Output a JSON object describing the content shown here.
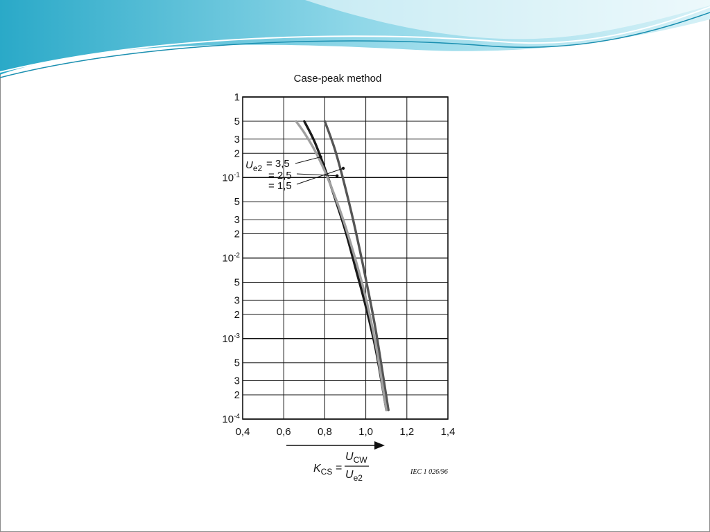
{
  "slide": {
    "colors": {
      "banner_dark": "#1fa3c4",
      "banner_light": "#bfe8f2",
      "frame": "#8a8a8a"
    }
  },
  "chart_data": {
    "type": "line",
    "title": "Case-peak method",
    "x_ticks": [
      "0,4",
      "0,6",
      "0,8",
      "1,0",
      "1,2",
      "1,4"
    ],
    "xlim": [
      0.4,
      1.4
    ],
    "y_scale": "log",
    "ylim": [
      0.0001,
      1
    ],
    "y_decade_labels": [
      {
        "base": "1",
        "exp": ""
      },
      {
        "base": "10",
        "exp": "-1"
      },
      {
        "base": "10",
        "exp": "-2"
      },
      {
        "base": "10",
        "exp": "-3"
      },
      {
        "base": "10",
        "exp": "-4"
      }
    ],
    "y_minor_labels": [
      "5",
      "3",
      "2"
    ],
    "grid": true,
    "legend": {
      "symbol_main": "U",
      "symbol_sub": "e2",
      "entries": [
        "= 3,5",
        "= 2,5",
        "= 1,5"
      ]
    },
    "series": [
      {
        "name": "3,5",
        "color": "#1a1a1a",
        "x": [
          0.7,
          0.75,
          0.8,
          0.85,
          0.9,
          0.95,
          1.0,
          1.05,
          1.1
        ],
        "y": [
          0.5,
          0.28,
          0.13,
          0.055,
          0.022,
          0.0075,
          0.0025,
          0.0007,
          0.00013
        ]
      },
      {
        "name": "2,5",
        "color": "#555555",
        "x": [
          0.8,
          0.85,
          0.9,
          0.95,
          1.0,
          1.05,
          1.11
        ],
        "y": [
          0.5,
          0.22,
          0.075,
          0.022,
          0.0055,
          0.0012,
          0.00013
        ]
      },
      {
        "name": "1,5",
        "color": "#a0a0a0",
        "x": [
          0.66,
          0.7,
          0.75,
          0.8,
          0.85,
          0.9,
          0.95,
          1.0,
          1.05,
          1.1
        ],
        "y": [
          0.5,
          0.36,
          0.22,
          0.12,
          0.058,
          0.025,
          0.0095,
          0.0032,
          0.0008,
          0.00013
        ]
      }
    ],
    "formula": {
      "k": "K",
      "k_sub": "CS",
      "num": "U",
      "num_sub": "CW",
      "den": "U",
      "den_sub": "e2"
    },
    "credit": "IEC  1 026/96"
  }
}
